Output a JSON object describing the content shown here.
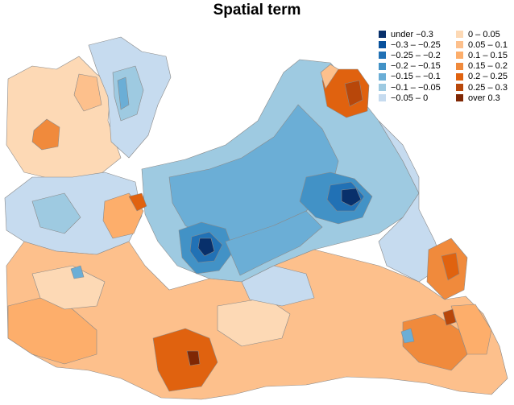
{
  "title": "Spatial term",
  "legend": {
    "negative": [
      {
        "label": "under −0.3",
        "color": "#08306b"
      },
      {
        "label": "−0.3 – −0.25",
        "color": "#08519c"
      },
      {
        "label": "−0.25 – −0.2",
        "color": "#2171b5"
      },
      {
        "label": "−0.2 – −0.15",
        "color": "#4292c6"
      },
      {
        "label": "−0.15 – −0.1",
        "color": "#6baed6"
      },
      {
        "label": "−0.1 – −0.05",
        "color": "#9ecae1"
      },
      {
        "label": "−0.05 – 0",
        "color": "#c6dbef"
      }
    ],
    "positive": [
      {
        "label": "0 – 0.05",
        "color": "#fdd9b5"
      },
      {
        "label": "0.05 – 0.1",
        "color": "#fdc08c"
      },
      {
        "label": "0.1 – 0.15",
        "color": "#fdae6b"
      },
      {
        "label": "0.15 – 0.2",
        "color": "#f08a3c"
      },
      {
        "label": "0.2 – 0.25",
        "color": "#e0620f"
      },
      {
        "label": "0.25 – 0.3",
        "color": "#b8470a"
      },
      {
        "label": "over 0.3",
        "color": "#7f2704"
      }
    ]
  },
  "map_colors": {
    "outline": "#8a8a8a"
  }
}
